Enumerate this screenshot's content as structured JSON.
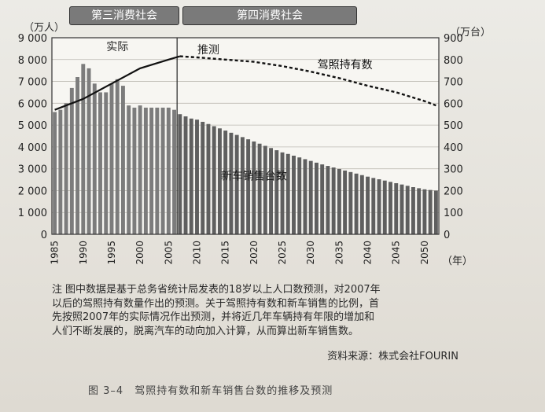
{
  "chart_data": {
    "type": "bar",
    "left_unit": "（万人）",
    "right_unit": "（万台）",
    "x_unit": "（年）",
    "era_labels": [
      "第三消费社会",
      "第四消费社会"
    ],
    "section_labels": {
      "actual": "实际",
      "forecast": "推测"
    },
    "left_axis": {
      "ylim": [
        0,
        9000
      ],
      "ticks": [
        "0",
        "1 000",
        "2 000",
        "3 000",
        "4 000",
        "5 000",
        "6 000",
        "7 000",
        "8 000",
        "9 000"
      ]
    },
    "right_axis": {
      "ylim": [
        0,
        900
      ],
      "ticks": [
        "0",
        "100",
        "200",
        "300",
        "400",
        "500",
        "600",
        "700",
        "800",
        "900"
      ]
    },
    "x_ticks": [
      "1985",
      "1990",
      "1995",
      "2000",
      "2005",
      "2010",
      "2015",
      "2020",
      "2025",
      "2030",
      "2035",
      "2040",
      "2045",
      "2050"
    ],
    "split_year": 2007,
    "bar_series_label": "新车销售台数",
    "line_series_label": "驾照持有数",
    "bars": {
      "years": [
        1985,
        1986,
        1987,
        1988,
        1989,
        1990,
        1991,
        1992,
        1993,
        1994,
        1995,
        1996,
        1997,
        1998,
        1999,
        2000,
        2001,
        2002,
        2003,
        2004,
        2005,
        2006,
        2007,
        2008,
        2009,
        2010,
        2011,
        2012,
        2013,
        2014,
        2015,
        2016,
        2017,
        2018,
        2019,
        2020,
        2021,
        2022,
        2023,
        2024,
        2025,
        2026,
        2027,
        2028,
        2029,
        2030,
        2031,
        2032,
        2033,
        2034,
        2035,
        2036,
        2037,
        2038,
        2039,
        2040,
        2041,
        2042,
        2043,
        2044,
        2045,
        2046,
        2047,
        2048,
        2049,
        2050,
        2051,
        2052
      ],
      "values": [
        560,
        570,
        600,
        670,
        720,
        780,
        760,
        690,
        650,
        650,
        690,
        710,
        680,
        590,
        580,
        590,
        580,
        580,
        580,
        580,
        580,
        570,
        550,
        540,
        530,
        525,
        515,
        505,
        495,
        485,
        475,
        465,
        455,
        445,
        435,
        425,
        415,
        405,
        395,
        385,
        375,
        368,
        360,
        352,
        344,
        336,
        328,
        320,
        313,
        306,
        299,
        292,
        285,
        278,
        271,
        264,
        258,
        252,
        246,
        240,
        234,
        228,
        222,
        216,
        211,
        206,
        203,
        200
      ]
    },
    "line": {
      "x": [
        1985,
        1990,
        1995,
        2000,
        2005,
        2007,
        2010,
        2015,
        2020,
        2025,
        2030,
        2035,
        2040,
        2045,
        2050,
        2052
      ],
      "y": [
        5700,
        6200,
        6900,
        7600,
        8000,
        8150,
        8100,
        8000,
        7900,
        7700,
        7450,
        7150,
        6800,
        6500,
        6100,
        5900
      ]
    }
  },
  "note": {
    "prefix": "注",
    "lines": [
      "图中数据是基于总务省统计局发表的18岁以上人口数预测，对2007年",
      "以后的驾照持有数量作出的预测。关于驾照持有数和新车销售的比例，首",
      "先按照2007年的实际情况作出预测，并将近几年车辆持有年限的增加和",
      "人们不断发展的，脱离汽车的动向加入计算，从而算出新车销售数。"
    ]
  },
  "source": "资料来源：株式会社FOURIN",
  "caption": {
    "number": "图 3–4",
    "title": "驾照持有数和新车销售台数的推移及预测"
  },
  "colors": {
    "bar": "#6a6a6a",
    "bar_light": "#9a9a9a",
    "line": "#1a1a1a",
    "grid": "#ffffff"
  }
}
